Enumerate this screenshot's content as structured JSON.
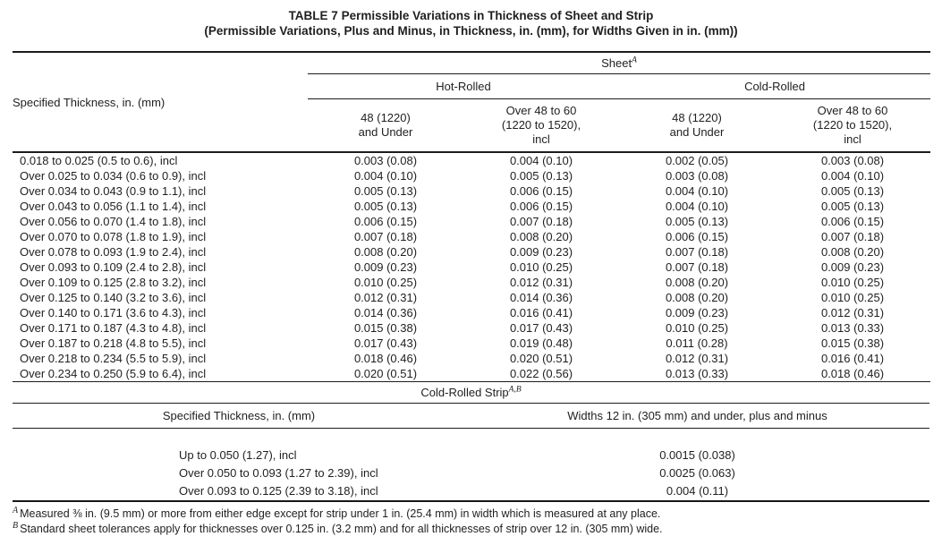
{
  "title": {
    "line1": "TABLE 7  Permissible Variations in Thickness of Sheet and Strip",
    "line2": "(Permissible Variations, Plus and Minus, in Thickness, in. (mm), for Widths Given in in. (mm))"
  },
  "sheet": {
    "row_header": "Specified Thickness, in. (mm)",
    "group_label": "Sheet",
    "group_footnote_ref": "A",
    "subgroups": [
      {
        "label": "Hot-Rolled"
      },
      {
        "label": "Cold-Rolled"
      }
    ],
    "columns": [
      "48 (1220)\nand Under",
      "Over 48 to 60\n(1220 to 1520),\nincl",
      "48 (1220)\nand Under",
      "Over 48 to 60\n(1220 to 1520),\nincl"
    ],
    "rows": [
      [
        "0.018 to 0.025 (0.5 to 0.6), incl",
        "0.003 (0.08)",
        "0.004 (0.10)",
        "0.002 (0.05)",
        "0.003 (0.08)"
      ],
      [
        "Over 0.025 to 0.034 (0.6 to 0.9), incl",
        "0.004 (0.10)",
        "0.005 (0.13)",
        "0.003 (0.08)",
        "0.004 (0.10)"
      ],
      [
        "Over 0.034 to 0.043 (0.9 to 1.1), incl",
        "0.005 (0.13)",
        "0.006 (0.15)",
        "0.004 (0.10)",
        "0.005 (0.13)"
      ],
      [
        "Over 0.043 to 0.056 (1.1 to 1.4), incl",
        "0.005 (0.13)",
        "0.006 (0.15)",
        "0.004 (0.10)",
        "0.005 (0.13)"
      ],
      [
        "Over 0.056 to 0.070 (1.4 to 1.8), incl",
        "0.006 (0.15)",
        "0.007 (0.18)",
        "0.005 (0.13)",
        "0.006 (0.15)"
      ],
      [
        "Over 0.070 to 0.078 (1.8 to 1.9), incl",
        "0.007 (0.18)",
        "0.008 (0.20)",
        "0.006 (0.15)",
        "0.007 (0.18)"
      ],
      [
        "Over 0.078 to 0.093 (1.9 to 2.4), incl",
        "0.008 (0.20)",
        "0.009 (0.23)",
        "0.007 (0.18)",
        "0.008 (0.20)"
      ],
      [
        "Over 0.093 to 0.109 (2.4 to 2.8), incl",
        "0.009 (0.23)",
        "0.010 (0.25)",
        "0.007 (0.18)",
        "0.009 (0.23)"
      ],
      [
        "Over 0.109 to 0.125 (2.8 to 3.2), incl",
        "0.010 (0.25)",
        "0.012 (0.31)",
        "0.008 (0.20)",
        "0.010 (0.25)"
      ],
      [
        "Over 0.125 to 0.140 (3.2 to 3.6), incl",
        "0.012 (0.31)",
        "0.014 (0.36)",
        "0.008 (0.20)",
        "0.010 (0.25)"
      ],
      [
        "Over 0.140 to 0.171 (3.6 to 4.3), incl",
        "0.014 (0.36)",
        "0.016 (0.41)",
        "0.009 (0.23)",
        "0.012 (0.31)"
      ],
      [
        "Over 0.171 to 0.187 (4.3 to 4.8), incl",
        "0.015 (0.38)",
        "0.017 (0.43)",
        "0.010 (0.25)",
        "0.013 (0.33)"
      ],
      [
        "Over 0.187 to 0.218 (4.8 to 5.5), incl",
        "0.017 (0.43)",
        "0.019 (0.48)",
        "0.011 (0.28)",
        "0.015 (0.38)"
      ],
      [
        "Over 0.218 to 0.234 (5.5 to 5.9), incl",
        "0.018 (0.46)",
        "0.020 (0.51)",
        "0.012 (0.31)",
        "0.016 (0.41)"
      ],
      [
        "Over 0.234 to 0.250 (5.9 to 6.4), incl",
        "0.020 (0.51)",
        "0.022 (0.56)",
        "0.013 (0.33)",
        "0.018 (0.46)"
      ]
    ]
  },
  "strip": {
    "group_label": "Cold-Rolled Strip",
    "group_footnote_ref": "A,B",
    "col1_header": "Specified Thickness, in. (mm)",
    "col2_header": "Widths 12 in. (305 mm) and under, plus and minus",
    "rows": [
      [
        "Up to 0.050 (1.27), incl",
        "0.0015 (0.038)"
      ],
      [
        "Over 0.050 to 0.093 (1.27 to 2.39), incl",
        "0.0025 (0.063)"
      ],
      [
        "Over 0.093 to 0.125 (2.39 to 3.18), incl",
        "0.004 (0.11)"
      ]
    ]
  },
  "footnotes": [
    {
      "marker": "A",
      "text": "Measured ⅜ in. (9.5 mm) or more from either edge except for strip under 1 in. (25.4 mm) in width which is measured at any place."
    },
    {
      "marker": "B",
      "text": "Standard sheet tolerances apply for thicknesses over 0.125 in. (3.2 mm) and for all thicknesses of strip over 12 in. (305 mm) wide."
    }
  ]
}
